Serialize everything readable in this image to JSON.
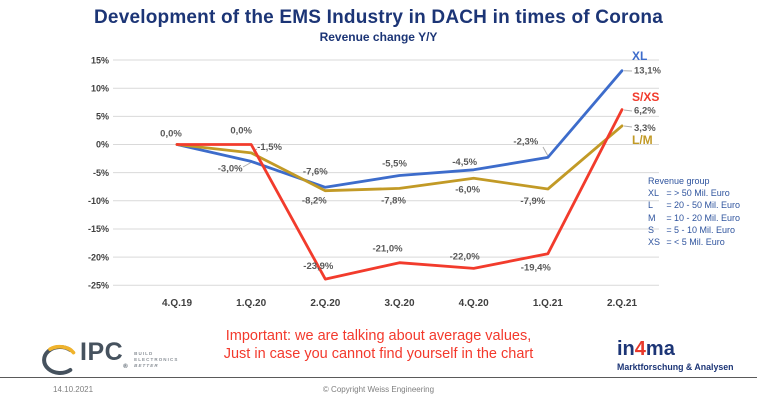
{
  "title": "Development of the EMS Industry in DACH in times of Corona",
  "chart_data": {
    "type": "line",
    "title": "Revenue change Y/Y",
    "categories": [
      "4.Q.19",
      "1.Q.20",
      "2.Q.20",
      "3.Q.20",
      "4.Q.20",
      "1.Q.21",
      "2.Q.21"
    ],
    "series": [
      {
        "name": "XL",
        "color": "#3D6CCB",
        "values": [
          0.0,
          -3.0,
          -7.6,
          -5.5,
          -4.5,
          -2.3,
          13.1
        ],
        "labels": [
          "0,0%",
          "-3,0%",
          "-7,6%",
          "-5,5%",
          "-4,5%",
          "-2,3%",
          "13,1%"
        ]
      },
      {
        "name": "L/M",
        "color": "#C29A26",
        "values": [
          0.0,
          -1.5,
          -8.2,
          -7.8,
          -6.0,
          -7.9,
          3.3
        ],
        "labels": [
          null,
          "-1,5%",
          "-8,2%",
          "-7,8%",
          "-6,0%",
          "-7,9%",
          "3,3%"
        ]
      },
      {
        "name": "S/XS",
        "color": "#F23B2C",
        "values": [
          0.0,
          0.0,
          -23.9,
          -21.0,
          -22.0,
          -19.4,
          6.2
        ],
        "labels": [
          null,
          "0,0%",
          "-23,9%",
          "-21,0%",
          "-22,0%",
          "-19,4%",
          "6,2%"
        ]
      }
    ],
    "ylim": [
      -25,
      15
    ],
    "yticks": [
      15,
      10,
      5,
      0,
      -5,
      -10,
      -15,
      -20,
      -25
    ],
    "ytick_labels": [
      "15%",
      "10%",
      "5%",
      "0%",
      "-5%",
      "-10%",
      "-15%",
      "-20%",
      "-25%"
    ],
    "grid": "horizontal",
    "legend_position": "right"
  },
  "legend": {
    "title": "Revenue group",
    "separator": "=",
    "entries": [
      {
        "code": "XL",
        "range": "> 50 Mil. Euro"
      },
      {
        "code": "L",
        "range": "20 - 50 Mil. Euro"
      },
      {
        "code": "M",
        "range": "10 - 20 Mil. Euro"
      },
      {
        "code": "S",
        "range": "5 - 10 Mil. Euro"
      },
      {
        "code": "XS",
        "range": "< 5 Mil. Euro"
      }
    ]
  },
  "note": {
    "line1": "Important: we are talking about average values,",
    "line2": "Just in case you cannot find yourself in the chart"
  },
  "logos": {
    "ipc": {
      "name": "IPC",
      "reg": "®",
      "tagline": [
        "BUILD",
        "ELECTRONICS",
        "BETTER"
      ]
    },
    "in4ma": {
      "part1": "in",
      "part2": "4",
      "part3": "ma",
      "subtitle": "Marktforschung & Analysen"
    }
  },
  "footer": {
    "date": "14.10.2021",
    "copyright": "© Copyright Weiss Engineering"
  },
  "colors": {
    "title": "#1C3576",
    "legend_text": "#2F549E",
    "data_label": "#595959",
    "axis_label": "#404040",
    "gridline": "#D9D9D9",
    "leader": "#ADADAD",
    "note_red": "#F3392C",
    "xl_blue": "#3D6CCB",
    "lm_gold": "#C29A26",
    "sxs_red": "#F23B2C"
  }
}
